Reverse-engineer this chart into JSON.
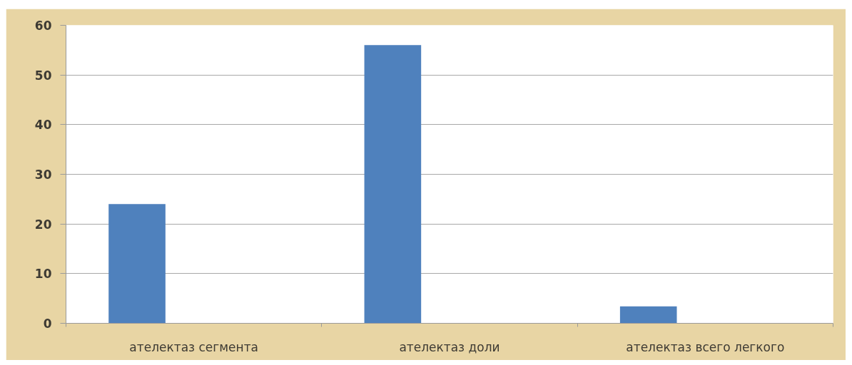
{
  "chart_data": {
    "type": "bar",
    "categories": [
      "ателектаз сегмента",
      "ателектаз доли",
      "ателектаз всего легкого"
    ],
    "series": [
      {
        "color": "#4f81bd",
        "values": [
          24,
          56,
          3.4
        ]
      },
      {
        "values": [
          null,
          null,
          null
        ]
      },
      {
        "values": [
          null,
          null,
          null
        ]
      }
    ],
    "ylim": [
      0,
      60
    ],
    "yticks": [
      0,
      10,
      20,
      30,
      40,
      50,
      60
    ],
    "grid": "y"
  }
}
